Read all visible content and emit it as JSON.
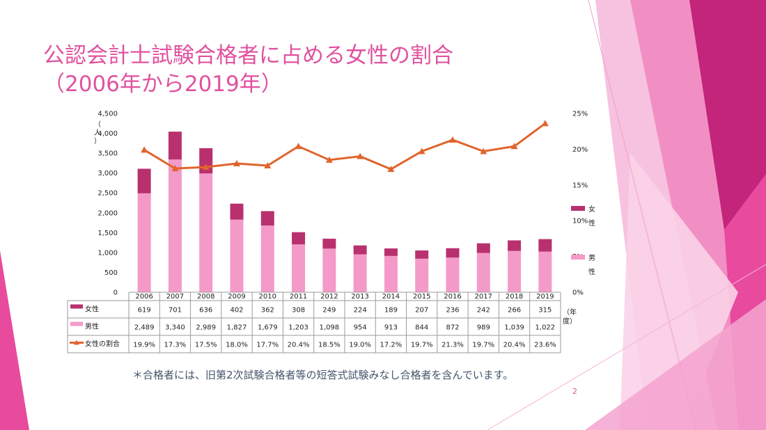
{
  "slide": {
    "title_line1": "公認会計士試験合格者に占める女性の割合",
    "title_line2": "（2006年から2019年）",
    "footnote": "＊合格者には、旧第2次試験合格者等の短答式試験みなし合格者を含んでいます。",
    "page_number": "2"
  },
  "colors": {
    "title": "#e0529f",
    "female_bar": "#b8316e",
    "male_bar": "#f49ac9",
    "ratio_line": "#e0642c",
    "footnote": "#44546a",
    "deco_dark": "#b8206f",
    "deco_mid": "#e84a9e",
    "deco_light": "#f5a3cf"
  },
  "chart_data": {
    "type": "bar",
    "stacked": true,
    "categories": [
      "2006",
      "2007",
      "2008",
      "2009",
      "2010",
      "2011",
      "2012",
      "2013",
      "2014",
      "2015",
      "2016",
      "2017",
      "2018",
      "2019"
    ],
    "series": [
      {
        "name": "女性",
        "kind": "bar",
        "axis": "left",
        "values": [
          619,
          701,
          636,
          402,
          362,
          308,
          249,
          224,
          189,
          207,
          236,
          242,
          266,
          315
        ],
        "table_labels": [
          "619",
          "701",
          "636",
          "402",
          "362",
          "308",
          "249",
          "224",
          "189",
          "207",
          "236",
          "242",
          "266",
          "315"
        ]
      },
      {
        "name": "男性",
        "kind": "bar",
        "axis": "left",
        "values": [
          2489,
          3340,
          2989,
          1827,
          1679,
          1203,
          1098,
          954,
          913,
          844,
          872,
          989,
          1039,
          1022
        ],
        "table_labels": [
          "2,489",
          "3,340",
          "2,989",
          "1,827",
          "1,679",
          "1,203",
          "1,098",
          "954",
          "913",
          "844",
          "872",
          "989",
          "1,039",
          "1,022"
        ]
      },
      {
        "name": "女性の割合",
        "kind": "line",
        "axis": "right",
        "values": [
          19.9,
          17.3,
          17.5,
          18.0,
          17.7,
          20.4,
          18.5,
          19.0,
          17.2,
          19.7,
          21.3,
          19.7,
          20.4,
          23.6
        ],
        "table_labels": [
          "19.9%",
          "17.3%",
          "17.5%",
          "18.0%",
          "17.7%",
          "20.4%",
          "18.5%",
          "19.0%",
          "17.2%",
          "19.7%",
          "21.3%",
          "19.7%",
          "20.4%",
          "23.6%"
        ]
      }
    ],
    "y_left": {
      "label_chars": [
        "（",
        "人",
        "）"
      ],
      "ylim": [
        0,
        4500
      ],
      "ticks": [
        0,
        500,
        1000,
        1500,
        2000,
        2500,
        3000,
        3500,
        4000,
        4500
      ],
      "tick_labels": [
        "0",
        "500",
        "1,000",
        "1,500",
        "2,000",
        "2,500",
        "3,000",
        "3,500",
        "4,000",
        "4,500"
      ]
    },
    "y_right": {
      "ylim": [
        0,
        25
      ],
      "ticks": [
        0,
        5,
        10,
        15,
        20,
        25
      ],
      "tick_labels": [
        "0%",
        "5%",
        "10%",
        "15%",
        "20%",
        "25%"
      ]
    },
    "x_unit_chars": [
      "（年",
      "度）"
    ],
    "legend": {
      "placement": "right",
      "items": [
        {
          "label_chars": [
            "女",
            "性"
          ],
          "color": "#b8316e"
        },
        {
          "label_chars": [
            "男",
            "性"
          ],
          "color": "#f49ac9"
        }
      ]
    },
    "data_table": true,
    "grid": false
  }
}
